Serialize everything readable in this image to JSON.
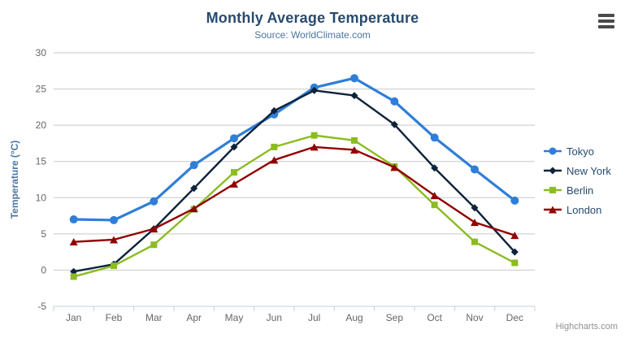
{
  "header": {
    "title": "Monthly Average Temperature",
    "subtitle": "Source: WorldClimate.com"
  },
  "context_menu": {
    "icon": "hamburger",
    "bar_count": 3
  },
  "credits": {
    "label": "Highcharts.com"
  },
  "colors": {
    "title": "#274b6d",
    "subtitle": "#4d759e",
    "axis_title": "#4d759e",
    "tick_label": "#666666",
    "grid_line": "#c8c8c8",
    "axis_line": "#c0d0e0",
    "legend_text": "#274b6d",
    "credits": "#909090",
    "menu_icon": "#4a4a4a",
    "background": "#ffffff"
  },
  "chart_data": {
    "type": "line",
    "title": "Monthly Average Temperature",
    "subtitle": "Source: WorldClimate.com",
    "xlabel": "",
    "ylabel": "Temperature (°C)",
    "ylim": [
      -5,
      30
    ],
    "ytick_interval": 5,
    "grid": true,
    "legend_position": "right",
    "categories": [
      "Jan",
      "Feb",
      "Mar",
      "Apr",
      "May",
      "Jun",
      "Jul",
      "Aug",
      "Sep",
      "Oct",
      "Nov",
      "Dec"
    ],
    "series": [
      {
        "name": "Tokyo",
        "color": "#2f7ed8",
        "marker": "circle",
        "line_width": 3.2,
        "marker_radius": 5,
        "values": [
          7.0,
          6.9,
          9.5,
          14.5,
          18.2,
          21.5,
          25.2,
          26.5,
          23.3,
          18.3,
          13.9,
          9.6
        ]
      },
      {
        "name": "New York",
        "color": "#0d233a",
        "marker": "diamond",
        "line_width": 2.4,
        "marker_radius": 4.5,
        "values": [
          -0.2,
          0.8,
          5.7,
          11.3,
          17.0,
          22.0,
          24.8,
          24.1,
          20.1,
          14.1,
          8.6,
          2.5
        ]
      },
      {
        "name": "Berlin",
        "color": "#8bbc21",
        "marker": "square",
        "line_width": 2.4,
        "marker_radius": 4.5,
        "values": [
          -0.9,
          0.6,
          3.5,
          8.4,
          13.5,
          17.0,
          18.6,
          17.9,
          14.3,
          9.0,
          3.9,
          1.0
        ]
      },
      {
        "name": "London",
        "color": "#910000",
        "marker": "triangle",
        "line_width": 2.4,
        "marker_radius": 4.5,
        "values": [
          3.9,
          4.2,
          5.7,
          8.5,
          11.9,
          15.2,
          17.0,
          16.6,
          14.2,
          10.3,
          6.6,
          4.8
        ]
      }
    ]
  }
}
